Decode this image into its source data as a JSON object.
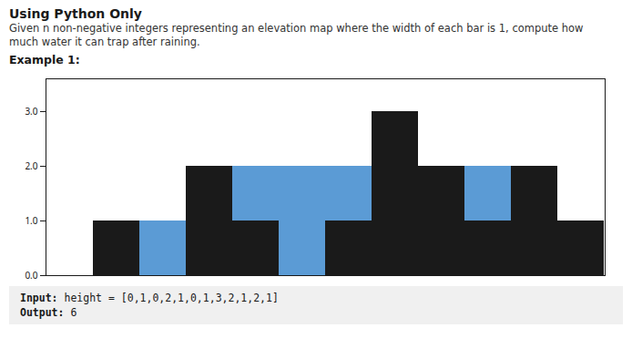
{
  "chart_data": {
    "type": "bar",
    "title": "Using Python Only",
    "subtitle": [
      "Given n non-negative integers representing an elevation map where the width of each bar is 1, compute how",
      "much water it can trap after raining."
    ],
    "annotations": [
      "Example 1:",
      "Input: height = [0,1,0,2,1,0,1,3,2,1,2,1]",
      "Output: 6"
    ],
    "categories": [
      null,
      null,
      null,
      null,
      null,
      null,
      null,
      null,
      null,
      null,
      null,
      null
    ],
    "series": [
      {
        "color": "#1a1a1a",
        "values": [
          0,
          1,
          0,
          2,
          1,
          0,
          1,
          3,
          2,
          1,
          2,
          1
        ]
      },
      {
        "color": "#5B9BD5",
        "values": [
          0,
          0,
          1,
          0,
          1,
          2,
          1,
          0,
          0,
          1,
          0,
          0
        ]
      }
    ],
    "stacked": true,
    "ylim": [
      0,
      3.6
    ],
    "yticks": [
      0,
      1,
      2,
      3
    ],
    "tick_labels": "y",
    "grid": false
  }
}
